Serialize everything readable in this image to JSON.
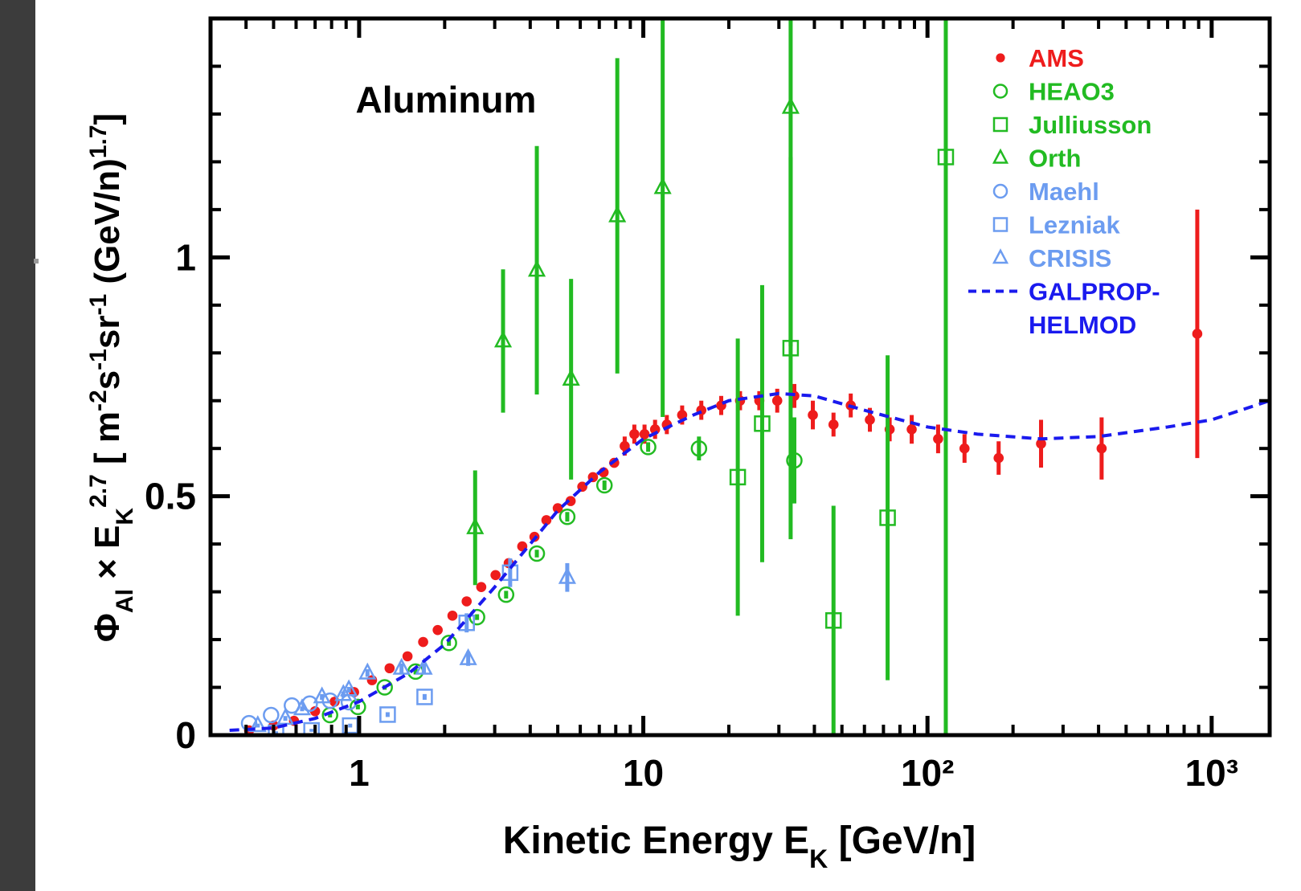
{
  "chart_data": {
    "type": "scatter",
    "annotation": "Aluminum",
    "xlabel": [
      {
        "text": "Kinetic Energy E"
      },
      {
        "text": "K",
        "shift": "sub"
      },
      {
        "text": " [GeV/n]"
      }
    ],
    "ylabel": [
      {
        "text": "Φ"
      },
      {
        "text": "Al",
        "shift": "sub"
      },
      {
        "text": " × E"
      },
      {
        "text": "K",
        "shift": "sub"
      },
      {
        "text": "2.7",
        "shift": "sup"
      },
      {
        "text": " [ m"
      },
      {
        "text": "-2",
        "shift": "sup"
      },
      {
        "text": "s"
      },
      {
        "text": "-1",
        "shift": "sup"
      },
      {
        "text": "sr"
      },
      {
        "text": "-1",
        "shift": "sup"
      },
      {
        "text": " (GeV/n)"
      },
      {
        "text": "1.7",
        "shift": "sup"
      },
      {
        "text": "]"
      }
    ],
    "xscale": "log",
    "xlim": [
      0.3,
      1600
    ],
    "ylim": [
      0,
      1.5
    ],
    "xticks": [
      1,
      10,
      {
        "value": 100,
        "label": "10²"
      },
      {
        "value": 1000,
        "label": "10³"
      }
    ],
    "yticks": [
      0,
      0.5,
      1
    ],
    "xminorticks": [
      0.4,
      0.5,
      0.6,
      0.7,
      0.8,
      0.9,
      2,
      3,
      4,
      5,
      6,
      7,
      8,
      9,
      20,
      30,
      40,
      50,
      60,
      70,
      80,
      90,
      200,
      300,
      400,
      500,
      600,
      700,
      800,
      900
    ],
    "yminorticks": [
      0.1,
      0.2,
      0.3,
      0.4,
      0.6,
      0.7,
      0.8,
      0.9,
      1.1,
      1.2,
      1.3,
      1.4
    ],
    "legend": "upper right",
    "series": [
      {
        "name": "AMS",
        "color": "#ee1c1c",
        "marker": "filled-circle",
        "x": [
          0.41,
          0.5,
          0.59,
          0.7,
          0.82,
          0.96,
          1.11,
          1.28,
          1.48,
          1.68,
          1.89,
          2.13,
          2.39,
          2.69,
          3.02,
          3.36,
          3.75,
          4.14,
          4.56,
          5.0,
          5.55,
          6.1,
          6.65,
          7.25,
          7.9,
          8.6,
          9.3,
          10.1,
          11.0,
          12.1,
          13.7,
          16.0,
          18.8,
          21.9,
          25.6,
          29.6,
          34.0,
          39.5,
          46.7,
          53.7,
          62.7,
          73.6,
          88,
          109,
          135,
          178,
          251,
          410,
          890
        ],
        "values": [
          0.01,
          0.02,
          0.03,
          0.05,
          0.07,
          0.09,
          0.115,
          0.14,
          0.165,
          0.195,
          0.22,
          0.25,
          0.28,
          0.31,
          0.335,
          0.36,
          0.395,
          0.415,
          0.45,
          0.475,
          0.49,
          0.52,
          0.54,
          0.55,
          0.57,
          0.605,
          0.63,
          0.63,
          0.64,
          0.65,
          0.67,
          0.68,
          0.69,
          0.7,
          0.7,
          0.7,
          0.71,
          0.67,
          0.65,
          0.69,
          0.66,
          0.64,
          0.64,
          0.62,
          0.6,
          0.58,
          0.61,
          0.6,
          0.84
        ],
        "errors": [
          0.003,
          0.003,
          0.003,
          0.003,
          0.003,
          0.004,
          0.004,
          0.004,
          0.004,
          0.004,
          0.005,
          0.005,
          0.005,
          0.005,
          0.005,
          0.008,
          0.008,
          0.008,
          0.008,
          0.008,
          0.01,
          0.01,
          0.01,
          0.01,
          0.01,
          0.02,
          0.02,
          0.02,
          0.02,
          0.02,
          0.02,
          0.02,
          0.02,
          0.02,
          0.02,
          0.025,
          0.025,
          0.03,
          0.025,
          0.025,
          0.025,
          0.025,
          0.03,
          0.03,
          0.03,
          0.035,
          0.05,
          0.065,
          0.26
        ]
      },
      {
        "name": "HEAO3",
        "color": "#22bb22",
        "marker": "circle",
        "x": [
          0.79,
          0.99,
          1.23,
          1.58,
          2.07,
          2.6,
          3.29,
          4.22,
          5.4,
          7.3,
          10.4,
          15.7,
          34
        ],
        "values": [
          0.042,
          0.059,
          0.1,
          0.133,
          0.193,
          0.247,
          0.294,
          0.38,
          0.457,
          0.523,
          0.603,
          0.6,
          0.575
        ],
        "errors": [
          0.005,
          0.005,
          0.005,
          0.006,
          0.006,
          0.006,
          0.008,
          0.008,
          0.01,
          0.01,
          0.01,
          0.025,
          0.09
        ]
      },
      {
        "name": "Julliusson",
        "color": "#22bb22",
        "marker": "square",
        "x": [
          21.5,
          26.2,
          33,
          46.7,
          72.4,
          116
        ],
        "values": [
          0.54,
          0.652,
          0.81,
          0.24,
          0.455,
          1.21
        ],
        "errors": [
          0.29,
          0.29,
          0.4,
          0.24,
          0.34,
          1.21
        ]
      },
      {
        "name": "Orth",
        "color": "#22bb22",
        "marker": "triangle",
        "x": [
          2.56,
          3.21,
          4.22,
          5.57,
          8.1,
          11.7,
          33
        ],
        "values": [
          0.434,
          0.825,
          0.973,
          0.745,
          1.087,
          1.146,
          1.314
        ],
        "errors": [
          0.12,
          0.15,
          0.26,
          0.21,
          0.33,
          0.48,
          0.5
        ]
      },
      {
        "name": "Maehl",
        "color": "#6c9cf0",
        "marker": "circle",
        "x": [
          0.41,
          0.49,
          0.58,
          0.67,
          0.79,
          0.92
        ],
        "values": [
          0.025,
          0.042,
          0.062,
          0.066,
          0.072,
          0.069
        ]
      },
      {
        "name": "Lezniak",
        "color": "#6c9cf0",
        "marker": "square",
        "x": [
          0.51,
          0.68,
          0.93,
          1.26,
          1.7,
          2.39,
          3.4
        ],
        "values": [
          0.005,
          0.01,
          0.02,
          0.043,
          0.08,
          0.235,
          0.34
        ],
        "errors": [
          0.003,
          0.003,
          0.004,
          0.005,
          0.006,
          0.02,
          0.03
        ]
      },
      {
        "name": "CRISIS",
        "color": "#6c9cf0",
        "marker": "triangle",
        "x": [
          0.44,
          0.55,
          0.63,
          0.74,
          0.88,
          0.92,
          1.07,
          1.41,
          1.69,
          2.42,
          5.4
        ],
        "values": [
          0.02,
          0.035,
          0.055,
          0.08,
          0.085,
          0.095,
          0.13,
          0.14,
          0.14,
          0.16,
          0.33
        ],
        "errors": [
          0.004,
          0.005,
          0.005,
          0.006,
          0.006,
          0.006,
          0.008,
          0.01,
          0.01,
          0.015,
          0.03
        ]
      },
      {
        "name": "GALPROP-HELMOD",
        "color": "#1a1aee",
        "marker": "dashed-line",
        "x": [
          0.35,
          0.5,
          0.7,
          1,
          1.5,
          2,
          3,
          4,
          5,
          7,
          10,
          15,
          20,
          30,
          40,
          60,
          100,
          150,
          250,
          400,
          700,
          1000,
          1600
        ],
        "values": [
          0.01,
          0.015,
          0.035,
          0.07,
          0.13,
          0.19,
          0.31,
          0.4,
          0.47,
          0.55,
          0.62,
          0.67,
          0.7,
          0.715,
          0.71,
          0.68,
          0.645,
          0.63,
          0.62,
          0.625,
          0.645,
          0.66,
          0.7
        ]
      }
    ]
  }
}
